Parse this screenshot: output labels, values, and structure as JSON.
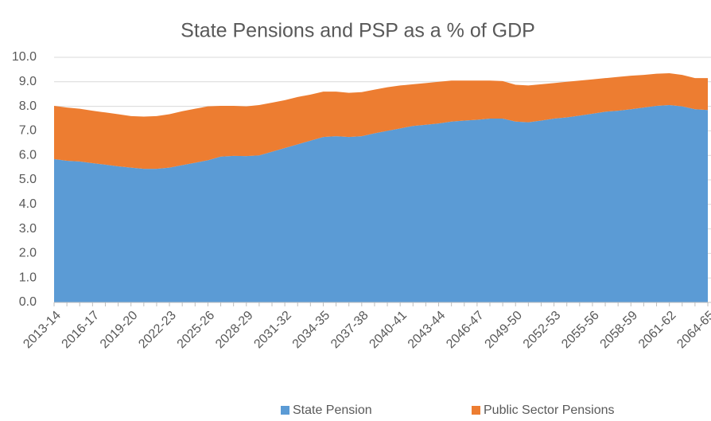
{
  "chart_data": {
    "type": "stacked_area",
    "title": "State Pensions and PSP as a % of GDP",
    "categories": [
      "2013-14",
      null,
      null,
      "2016-17",
      null,
      null,
      "2019-20",
      null,
      null,
      "2022-23",
      null,
      null,
      "2025-26",
      null,
      null,
      "2028-29",
      null,
      null,
      "2031-32",
      null,
      null,
      "2034-35",
      null,
      null,
      "2037-38",
      null,
      null,
      "2040-41",
      null,
      null,
      "2043-44",
      null,
      null,
      "2046-47",
      null,
      null,
      "2049-50",
      null,
      null,
      "2052-53",
      null,
      null,
      "2055-56",
      null,
      null,
      "2058-59",
      null,
      null,
      "2061-62",
      null,
      null,
      "2064-65"
    ],
    "series": [
      {
        "name": "State Pension",
        "color": "#5b9bd5",
        "values": [
          5.85,
          5.78,
          5.75,
          5.68,
          5.62,
          5.55,
          5.5,
          5.45,
          5.45,
          5.5,
          5.6,
          5.7,
          5.8,
          5.95,
          5.98,
          5.97,
          6.0,
          6.15,
          6.3,
          6.45,
          6.6,
          6.75,
          6.78,
          6.75,
          6.78,
          6.9,
          7.0,
          7.1,
          7.2,
          7.25,
          7.3,
          7.38,
          7.42,
          7.45,
          7.5,
          7.5,
          7.38,
          7.35,
          7.42,
          7.5,
          7.55,
          7.62,
          7.7,
          7.78,
          7.82,
          7.88,
          7.95,
          8.02,
          8.05,
          8.0,
          7.88,
          7.85
        ]
      },
      {
        "name": "Public Sector Pensions",
        "color": "#ed7d31",
        "values": [
          2.17,
          2.17,
          2.15,
          2.14,
          2.13,
          2.13,
          2.1,
          2.13,
          2.15,
          2.18,
          2.2,
          2.2,
          2.2,
          2.07,
          2.04,
          2.03,
          2.05,
          2.0,
          1.95,
          1.93,
          1.88,
          1.85,
          1.82,
          1.8,
          1.8,
          1.78,
          1.78,
          1.75,
          1.7,
          1.7,
          1.7,
          1.67,
          1.63,
          1.6,
          1.55,
          1.53,
          1.5,
          1.5,
          1.48,
          1.45,
          1.45,
          1.43,
          1.4,
          1.37,
          1.38,
          1.37,
          1.33,
          1.31,
          1.3,
          1.28,
          1.27,
          1.3
        ]
      }
    ],
    "ylim": [
      0,
      10
    ],
    "yticks": [
      {
        "value": 0,
        "label": "0.0"
      },
      {
        "value": 1,
        "label": "1.0"
      },
      {
        "value": 2,
        "label": "2.0"
      },
      {
        "value": 3,
        "label": "3.0"
      },
      {
        "value": 4,
        "label": "4.0"
      },
      {
        "value": 5,
        "label": "5.0"
      },
      {
        "value": 6,
        "label": "6.0"
      },
      {
        "value": 7,
        "label": "7.0"
      },
      {
        "value": 8,
        "label": "8.0"
      },
      {
        "value": 9,
        "label": "9.0"
      },
      {
        "value": 10,
        "label": "10.0"
      }
    ],
    "grid": true,
    "legend": "bottom"
  }
}
